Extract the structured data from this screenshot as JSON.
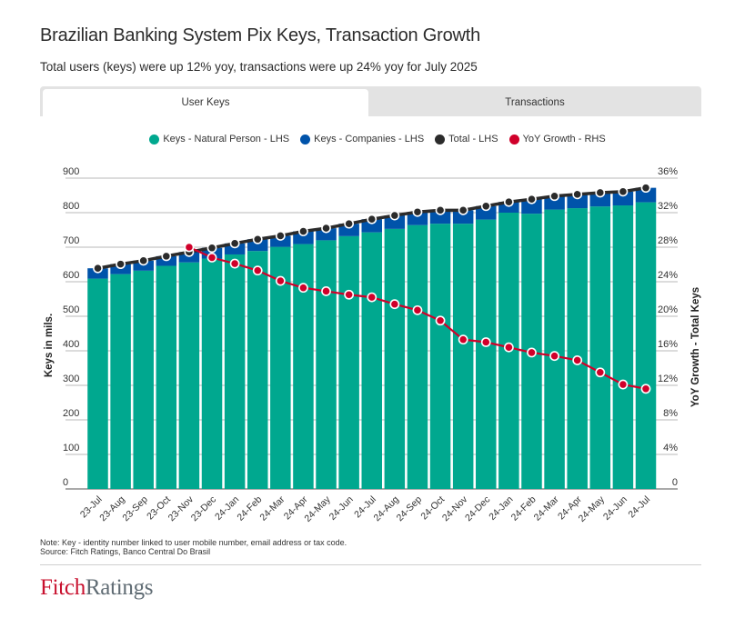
{
  "header": {
    "title": "Brazilian Banking System Pix Keys, Transaction Growth",
    "subtitle": "Total users (keys) were up 12% yoy, transactions were up 24% yoy for July 2025"
  },
  "tabs": [
    {
      "label": "User Keys",
      "active": true
    },
    {
      "label": "Transactions",
      "active": false
    }
  ],
  "legend": [
    {
      "label": "Keys - Natural Person - LHS",
      "color": "#00a88f"
    },
    {
      "label": "Keys - Companies - LHS",
      "color": "#0053aa"
    },
    {
      "label": "Total - LHS",
      "color": "#2b2b2b"
    },
    {
      "label": "YoY Growth - RHS",
      "color": "#d0002a"
    }
  ],
  "footer": {
    "note": "Note: Key - identity number linked to user mobile number, email address or tax code.",
    "source": "Source: Fitch Ratings, Banco Central Do Brasil",
    "logo_part1": "Fitch",
    "logo_part2": "Ratings"
  },
  "chart_data": {
    "type": "bar",
    "title": "Brazilian Banking System Pix Keys, Transaction Growth",
    "xlabel": "",
    "ylabel": "Keys in mils.",
    "y2label": "YoY Growth - Total Keys",
    "ylim": [
      0,
      900
    ],
    "y2lim": [
      0,
      36
    ],
    "yticks": [
      "0",
      "100",
      "200",
      "300",
      "400",
      "500",
      "600",
      "700",
      "800",
      "900"
    ],
    "y2ticks": [
      "0",
      "4%",
      "8%",
      "12%",
      "16%",
      "20%",
      "24%",
      "28%",
      "32%",
      "36%"
    ],
    "grid": true,
    "legend_position": "top-center",
    "categories": [
      "23-Jul",
      "23-Aug",
      "23-Sep",
      "23-Oct",
      "23-Nov",
      "23-Dec",
      "24-Jan",
      "24-Feb",
      "24-Mar",
      "24-Apr",
      "24-May",
      "24-Jun",
      "24-Jul",
      "24-Aug",
      "24-Sep",
      "24-Oct",
      "24-Nov",
      "24-Dec",
      "24-Jan",
      "24-Feb",
      "24-Mar",
      "24-Apr",
      "24-May",
      "24-Jun",
      "24-Jul"
    ],
    "series": [
      {
        "name": "Keys - Natural Person - LHS",
        "type": "stacked-bar",
        "axis": "left",
        "color": "#00a88f",
        "values": [
          609,
          622,
          632,
          646,
          656,
          667,
          679,
          689,
          701,
          709,
          720,
          732,
          743,
          753,
          764,
          768,
          768,
          780,
          800,
          797,
          809,
          813,
          818,
          821,
          830
        ]
      },
      {
        "name": "Keys - Companies - LHS",
        "type": "stacked-bar",
        "axis": "left",
        "color": "#0053aa",
        "values": [
          30,
          29,
          29,
          28,
          30,
          31,
          32,
          34,
          32,
          37,
          35,
          36,
          38,
          39,
          38,
          39,
          39,
          39,
          31,
          42,
          39,
          40,
          40,
          40,
          42
        ]
      },
      {
        "name": "Total - LHS",
        "type": "line",
        "axis": "left",
        "color": "#2b2b2b",
        "values": [
          639,
          651,
          661,
          674,
          686,
          698,
          711,
          723,
          733,
          746,
          755,
          768,
          781,
          792,
          802,
          807,
          807,
          819,
          831,
          839,
          848,
          853,
          858,
          861,
          872
        ]
      },
      {
        "name": "YoY Growth - RHS",
        "type": "line",
        "axis": "right",
        "color": "#d0002a",
        "values": [
          null,
          null,
          null,
          null,
          28.0,
          26.8,
          26.1,
          25.3,
          24.1,
          23.3,
          22.9,
          22.5,
          22.2,
          21.4,
          20.7,
          19.5,
          17.3,
          17.0,
          16.4,
          15.8,
          15.4,
          14.9,
          13.5,
          12.1,
          11.6
        ]
      }
    ]
  }
}
